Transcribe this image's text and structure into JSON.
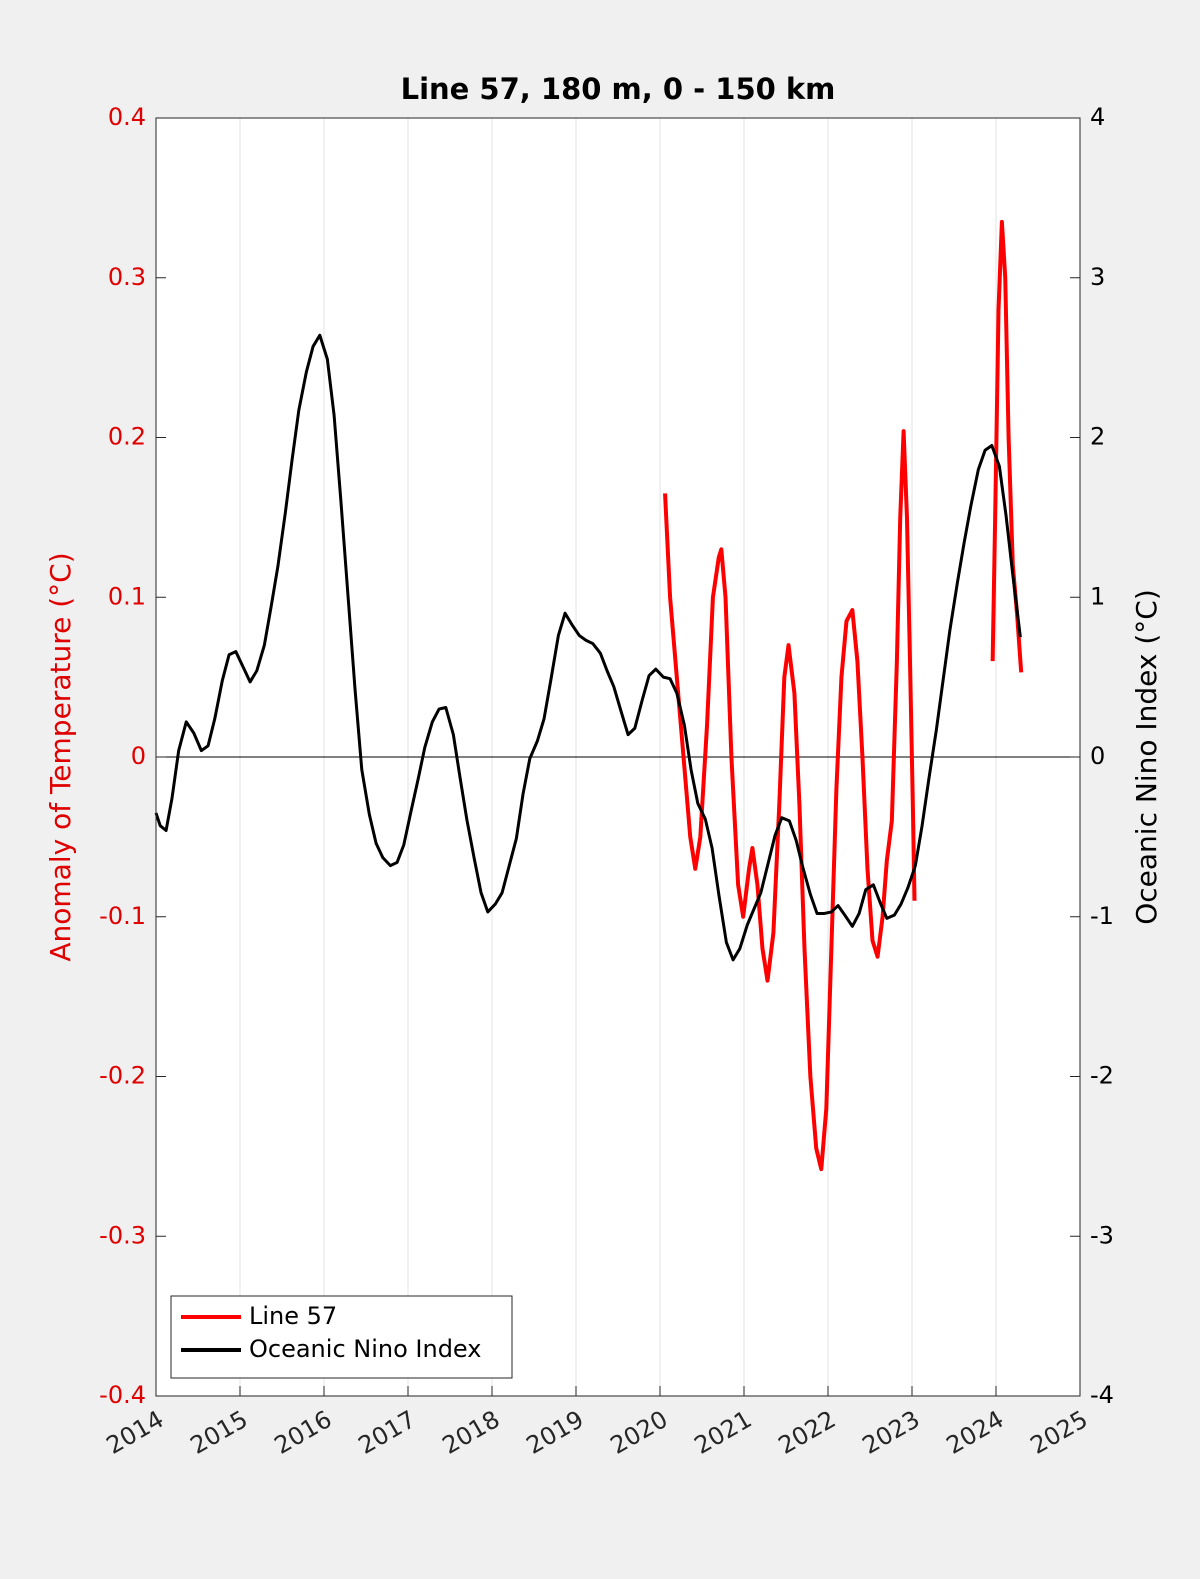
{
  "chart_data": {
    "type": "line",
    "title": "Line 57, 180 m, 0 - 150 km",
    "y_label": "Anomaly of Temperature (°C)",
    "y2_label": "Oceanic Nino Index (°C)",
    "xlim": [
      2014,
      2025
    ],
    "xticks": [
      2014,
      2015,
      2016,
      2017,
      2018,
      2019,
      2020,
      2021,
      2022,
      2023,
      2024,
      2025
    ],
    "ylim": [
      -0.4,
      0.4
    ],
    "yticks": [
      -0.4,
      -0.3,
      -0.2,
      -0.1,
      0,
      0.1,
      0.2,
      0.3,
      0.4
    ],
    "y2lim": [
      -4,
      4
    ],
    "y2ticks": [
      -4,
      -3,
      -2,
      -1,
      0,
      1,
      2,
      3,
      4
    ],
    "grid": "x",
    "legend": "lower left",
    "y_color": "#e00000",
    "y2_color": "#000000",
    "series": [
      {
        "name": "Line 57",
        "color": "#ff0000",
        "axis": "y",
        "x": [
          2020.06,
          2020.12,
          2020.2,
          2020.28,
          2020.36,
          2020.42,
          2020.48,
          2020.56,
          2020.63,
          2020.7,
          2020.73,
          2020.78,
          2020.85,
          2020.93,
          2020.99,
          2021.06,
          2021.1,
          2021.16,
          2021.22,
          2021.28,
          2021.35,
          2021.42,
          2021.48,
          2021.53,
          2021.6,
          2021.66,
          2021.72,
          2021.79,
          2021.86,
          2021.92,
          2021.98,
          2022.04,
          2022.1,
          2022.16,
          2022.22,
          2022.29,
          2022.35,
          2022.41,
          2022.47,
          2022.53,
          2022.59,
          2022.65,
          2022.7,
          2022.76,
          2022.82,
          2022.86,
          2022.9,
          2022.94,
          2022.98,
          2023.01,
          2023.03,
          2023.5,
          2023.96,
          2023.99,
          2024.03,
          2024.07,
          2024.11,
          2024.15,
          2024.2,
          2024.25,
          2024.3
        ],
        "values": [
          0.165,
          0.1,
          0.05,
          0.0,
          -0.05,
          -0.07,
          -0.05,
          0.02,
          0.1,
          0.125,
          0.13,
          0.1,
          0.0,
          -0.08,
          -0.1,
          -0.07,
          -0.057,
          -0.08,
          -0.12,
          -0.14,
          -0.11,
          -0.03,
          0.05,
          0.07,
          0.04,
          -0.03,
          -0.12,
          -0.2,
          -0.245,
          -0.258,
          -0.22,
          -0.12,
          -0.02,
          0.05,
          0.085,
          0.092,
          0.06,
          0.0,
          -0.07,
          -0.115,
          -0.125,
          -0.1,
          -0.065,
          -0.04,
          0.06,
          0.15,
          0.204,
          0.15,
          0.05,
          -0.03,
          -0.09,
          null,
          0.06,
          0.15,
          0.28,
          0.335,
          0.3,
          0.2,
          0.12,
          0.09,
          0.053
        ]
      },
      {
        "name": "Oceanic Nino Index",
        "color": "#000000",
        "axis": "y2",
        "x": [
          2014.0,
          2014.05,
          2014.12,
          2014.19,
          2014.27,
          2014.36,
          2014.45,
          2014.54,
          2014.62,
          2014.7,
          2014.79,
          2014.87,
          2014.95,
          2015.04,
          2015.12,
          2015.2,
          2015.29,
          2015.37,
          2015.45,
          2015.54,
          2015.62,
          2015.7,
          2015.79,
          2015.87,
          2015.95,
          2016.04,
          2016.12,
          2016.2,
          2016.29,
          2016.37,
          2016.45,
          2016.54,
          2016.62,
          2016.7,
          2016.79,
          2016.87,
          2016.95,
          2017.04,
          2017.12,
          2017.2,
          2017.29,
          2017.37,
          2017.45,
          2017.54,
          2017.62,
          2017.7,
          2017.79,
          2017.87,
          2017.95,
          2018.04,
          2018.12,
          2018.2,
          2018.29,
          2018.37,
          2018.45,
          2018.54,
          2018.62,
          2018.7,
          2018.79,
          2018.87,
          2018.95,
          2019.04,
          2019.12,
          2019.2,
          2019.29,
          2019.37,
          2019.45,
          2019.54,
          2019.62,
          2019.7,
          2019.79,
          2019.87,
          2019.95,
          2020.04,
          2020.12,
          2020.2,
          2020.29,
          2020.37,
          2020.45,
          2020.54,
          2020.62,
          2020.7,
          2020.79,
          2020.87,
          2020.95,
          2021.04,
          2021.12,
          2021.2,
          2021.29,
          2021.37,
          2021.45,
          2021.54,
          2021.62,
          2021.7,
          2021.79,
          2021.87,
          2021.95,
          2022.04,
          2022.12,
          2022.2,
          2022.29,
          2022.37,
          2022.45,
          2022.54,
          2022.62,
          2022.7,
          2022.79,
          2022.87,
          2022.95,
          2023.04,
          2023.12,
          2023.2,
          2023.29,
          2023.37,
          2023.45,
          2023.54,
          2023.62,
          2023.7,
          2023.79,
          2023.87,
          2023.95,
          2024.04,
          2024.12,
          2024.2,
          2024.29
        ],
        "values": [
          -0.35,
          -0.43,
          -0.46,
          -0.26,
          0.04,
          0.22,
          0.15,
          0.04,
          0.07,
          0.24,
          0.48,
          0.64,
          0.66,
          0.56,
          0.47,
          0.54,
          0.7,
          0.94,
          1.19,
          1.53,
          1.86,
          2.17,
          2.41,
          2.57,
          2.64,
          2.49,
          2.14,
          1.61,
          0.98,
          0.42,
          -0.08,
          -0.36,
          -0.54,
          -0.63,
          -0.68,
          -0.66,
          -0.55,
          -0.33,
          -0.14,
          0.06,
          0.22,
          0.3,
          0.31,
          0.14,
          -0.13,
          -0.39,
          -0.64,
          -0.85,
          -0.97,
          -0.92,
          -0.85,
          -0.69,
          -0.51,
          -0.23,
          -0.01,
          0.1,
          0.24,
          0.48,
          0.76,
          0.9,
          0.83,
          0.76,
          0.73,
          0.71,
          0.65,
          0.54,
          0.44,
          0.28,
          0.14,
          0.18,
          0.36,
          0.51,
          0.55,
          0.5,
          0.49,
          0.4,
          0.2,
          -0.08,
          -0.29,
          -0.39,
          -0.57,
          -0.86,
          -1.16,
          -1.27,
          -1.2,
          -1.05,
          -0.95,
          -0.85,
          -0.66,
          -0.49,
          -0.38,
          -0.4,
          -0.52,
          -0.69,
          -0.86,
          -0.98,
          -0.98,
          -0.97,
          -0.93,
          -0.99,
          -1.06,
          -0.98,
          -0.83,
          -0.8,
          -0.91,
          -1.01,
          -0.99,
          -0.92,
          -0.82,
          -0.68,
          -0.43,
          -0.14,
          0.17,
          0.48,
          0.79,
          1.09,
          1.34,
          1.57,
          1.8,
          1.92,
          1.95,
          1.82,
          1.51,
          1.14,
          0.75
        ]
      }
    ]
  }
}
